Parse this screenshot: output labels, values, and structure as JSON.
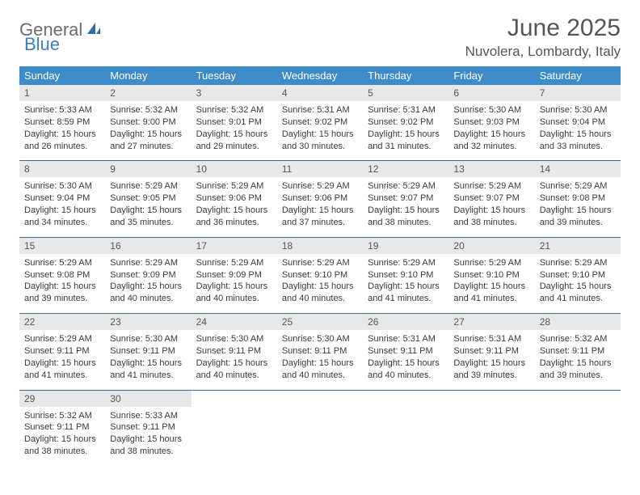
{
  "brand": {
    "text1": "General",
    "text2": "Blue"
  },
  "title": "June 2025",
  "location": "Nuvolera, Lombardy, Italy",
  "colors": {
    "header_bg": "#3d8cc9",
    "header_text": "#ffffff",
    "daynum_bg": "#e7e8e9",
    "daynum_text": "#555555",
    "body_text": "#3a3a3a",
    "rule": "#3d6a9a",
    "brand_gray": "#6b6b6b",
    "brand_blue": "#3b7fc4"
  },
  "fonts": {
    "title_size": 30,
    "location_size": 17,
    "dow_size": 13,
    "daynum_size": 12,
    "body_size": 11
  },
  "dow": [
    "Sunday",
    "Monday",
    "Tuesday",
    "Wednesday",
    "Thursday",
    "Friday",
    "Saturday"
  ],
  "weeks": [
    [
      {
        "n": "1",
        "sr": "5:33 AM",
        "ss": "8:59 PM",
        "dl": "15 hours and 26 minutes."
      },
      {
        "n": "2",
        "sr": "5:32 AM",
        "ss": "9:00 PM",
        "dl": "15 hours and 27 minutes."
      },
      {
        "n": "3",
        "sr": "5:32 AM",
        "ss": "9:01 PM",
        "dl": "15 hours and 29 minutes."
      },
      {
        "n": "4",
        "sr": "5:31 AM",
        "ss": "9:02 PM",
        "dl": "15 hours and 30 minutes."
      },
      {
        "n": "5",
        "sr": "5:31 AM",
        "ss": "9:02 PM",
        "dl": "15 hours and 31 minutes."
      },
      {
        "n": "6",
        "sr": "5:30 AM",
        "ss": "9:03 PM",
        "dl": "15 hours and 32 minutes."
      },
      {
        "n": "7",
        "sr": "5:30 AM",
        "ss": "9:04 PM",
        "dl": "15 hours and 33 minutes."
      }
    ],
    [
      {
        "n": "8",
        "sr": "5:30 AM",
        "ss": "9:04 PM",
        "dl": "15 hours and 34 minutes."
      },
      {
        "n": "9",
        "sr": "5:29 AM",
        "ss": "9:05 PM",
        "dl": "15 hours and 35 minutes."
      },
      {
        "n": "10",
        "sr": "5:29 AM",
        "ss": "9:06 PM",
        "dl": "15 hours and 36 minutes."
      },
      {
        "n": "11",
        "sr": "5:29 AM",
        "ss": "9:06 PM",
        "dl": "15 hours and 37 minutes."
      },
      {
        "n": "12",
        "sr": "5:29 AM",
        "ss": "9:07 PM",
        "dl": "15 hours and 38 minutes."
      },
      {
        "n": "13",
        "sr": "5:29 AM",
        "ss": "9:07 PM",
        "dl": "15 hours and 38 minutes."
      },
      {
        "n": "14",
        "sr": "5:29 AM",
        "ss": "9:08 PM",
        "dl": "15 hours and 39 minutes."
      }
    ],
    [
      {
        "n": "15",
        "sr": "5:29 AM",
        "ss": "9:08 PM",
        "dl": "15 hours and 39 minutes."
      },
      {
        "n": "16",
        "sr": "5:29 AM",
        "ss": "9:09 PM",
        "dl": "15 hours and 40 minutes."
      },
      {
        "n": "17",
        "sr": "5:29 AM",
        "ss": "9:09 PM",
        "dl": "15 hours and 40 minutes."
      },
      {
        "n": "18",
        "sr": "5:29 AM",
        "ss": "9:10 PM",
        "dl": "15 hours and 40 minutes."
      },
      {
        "n": "19",
        "sr": "5:29 AM",
        "ss": "9:10 PM",
        "dl": "15 hours and 41 minutes."
      },
      {
        "n": "20",
        "sr": "5:29 AM",
        "ss": "9:10 PM",
        "dl": "15 hours and 41 minutes."
      },
      {
        "n": "21",
        "sr": "5:29 AM",
        "ss": "9:10 PM",
        "dl": "15 hours and 41 minutes."
      }
    ],
    [
      {
        "n": "22",
        "sr": "5:29 AM",
        "ss": "9:11 PM",
        "dl": "15 hours and 41 minutes."
      },
      {
        "n": "23",
        "sr": "5:30 AM",
        "ss": "9:11 PM",
        "dl": "15 hours and 41 minutes."
      },
      {
        "n": "24",
        "sr": "5:30 AM",
        "ss": "9:11 PM",
        "dl": "15 hours and 40 minutes."
      },
      {
        "n": "25",
        "sr": "5:30 AM",
        "ss": "9:11 PM",
        "dl": "15 hours and 40 minutes."
      },
      {
        "n": "26",
        "sr": "5:31 AM",
        "ss": "9:11 PM",
        "dl": "15 hours and 40 minutes."
      },
      {
        "n": "27",
        "sr": "5:31 AM",
        "ss": "9:11 PM",
        "dl": "15 hours and 39 minutes."
      },
      {
        "n": "28",
        "sr": "5:32 AM",
        "ss": "9:11 PM",
        "dl": "15 hours and 39 minutes."
      }
    ],
    [
      {
        "n": "29",
        "sr": "5:32 AM",
        "ss": "9:11 PM",
        "dl": "15 hours and 38 minutes."
      },
      {
        "n": "30",
        "sr": "5:33 AM",
        "ss": "9:11 PM",
        "dl": "15 hours and 38 minutes."
      },
      null,
      null,
      null,
      null,
      null
    ]
  ],
  "labels": {
    "sunrise": "Sunrise:",
    "sunset": "Sunset:",
    "daylight": "Daylight:"
  }
}
